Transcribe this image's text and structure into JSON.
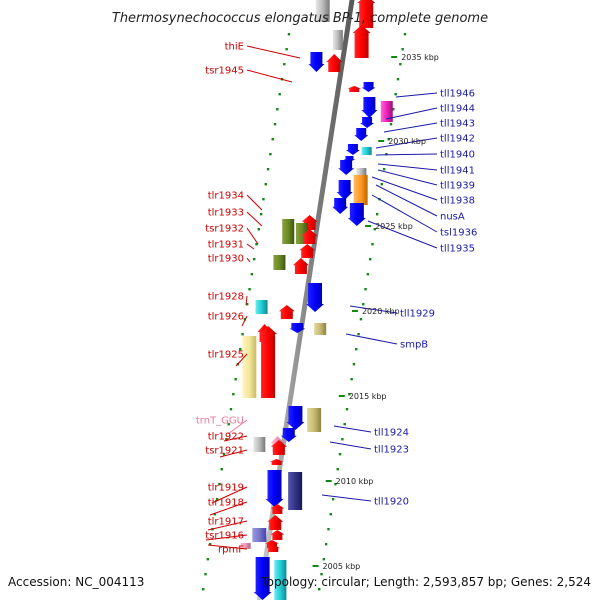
{
  "title": "Thermosynechococcus elongatus BP-1, complete genome",
  "footer": {
    "accession": "Accession: NC_004113",
    "summary": "Topology: circular; Length: 2,593,857 bp; Genes: 2,524"
  },
  "colors": {
    "forward_strand_genes": "#ff0000",
    "reverse_strand_genes": "#0000ff",
    "left_labels": "#cc0000",
    "right_labels": "#1a1aa8",
    "rna_label": "#ee7799",
    "tick_marks": "#118811"
  },
  "chart_data": {
    "type": "linear-genome-map",
    "scale_ticks_kbp": [
      {
        "label": "2035 kbp",
        "kbp": 2035
      },
      {
        "label": "2030 kbp",
        "kbp": 2030
      },
      {
        "label": "2025 kbp",
        "kbp": 2025
      },
      {
        "label": "2020 kbp",
        "kbp": 2020
      },
      {
        "label": "2015 kbp",
        "kbp": 2015
      },
      {
        "label": "2010 kbp",
        "kbp": 2010
      },
      {
        "label": "2005 kbp",
        "kbp": 2005
      }
    ],
    "left_labels": [
      {
        "name": "thiE",
        "color": "#cc0000"
      },
      {
        "name": "tsr1945",
        "color": "#cc0000"
      },
      {
        "name": "tlr1934",
        "color": "#cc0000"
      },
      {
        "name": "tlr1933",
        "color": "#cc0000"
      },
      {
        "name": "tsr1932",
        "color": "#cc0000"
      },
      {
        "name": "tlr1931",
        "color": "#cc0000"
      },
      {
        "name": "tlr1930",
        "color": "#cc0000"
      },
      {
        "name": "tlr1928",
        "color": "#cc0000"
      },
      {
        "name": "tlr1926",
        "color": "#cc0000"
      },
      {
        "name": "tlr1925",
        "color": "#cc0000"
      },
      {
        "name": "trnT_GGU",
        "color": "#ee7799"
      },
      {
        "name": "tlr1922",
        "color": "#cc0000"
      },
      {
        "name": "tsr1921",
        "color": "#cc0000"
      },
      {
        "name": "tlr1919",
        "color": "#cc0000"
      },
      {
        "name": "tlr1918",
        "color": "#cc0000"
      },
      {
        "name": "tlr1917",
        "color": "#cc0000"
      },
      {
        "name": "tsr1916",
        "color": "#cc0000"
      },
      {
        "name": "rpmF",
        "color": "#cc0000"
      }
    ],
    "right_labels": [
      {
        "name": "tll1946",
        "color": "#1a1aa8"
      },
      {
        "name": "tll1944",
        "color": "#1a1aa8"
      },
      {
        "name": "tll1943",
        "color": "#1a1aa8"
      },
      {
        "name": "tll1942",
        "color": "#1a1aa8"
      },
      {
        "name": "tll1940",
        "color": "#1a1aa8"
      },
      {
        "name": "tll1941",
        "color": "#1a1aa8"
      },
      {
        "name": "tll1939",
        "color": "#1a1aa8"
      },
      {
        "name": "tll1938",
        "color": "#1a1aa8"
      },
      {
        "name": "nusA",
        "color": "#1a1aa8"
      },
      {
        "name": "tsl1936",
        "color": "#1a1aa8"
      },
      {
        "name": "tll1935",
        "color": "#1a1aa8"
      },
      {
        "name": "tll1929",
        "color": "#1a1aa8"
      },
      {
        "name": "smpB",
        "color": "#1a1aa8"
      },
      {
        "name": "tll1924",
        "color": "#1a1aa8"
      },
      {
        "name": "tll1923",
        "color": "#1a1aa8"
      },
      {
        "name": "tll1920",
        "color": "#1a1aa8"
      }
    ]
  }
}
